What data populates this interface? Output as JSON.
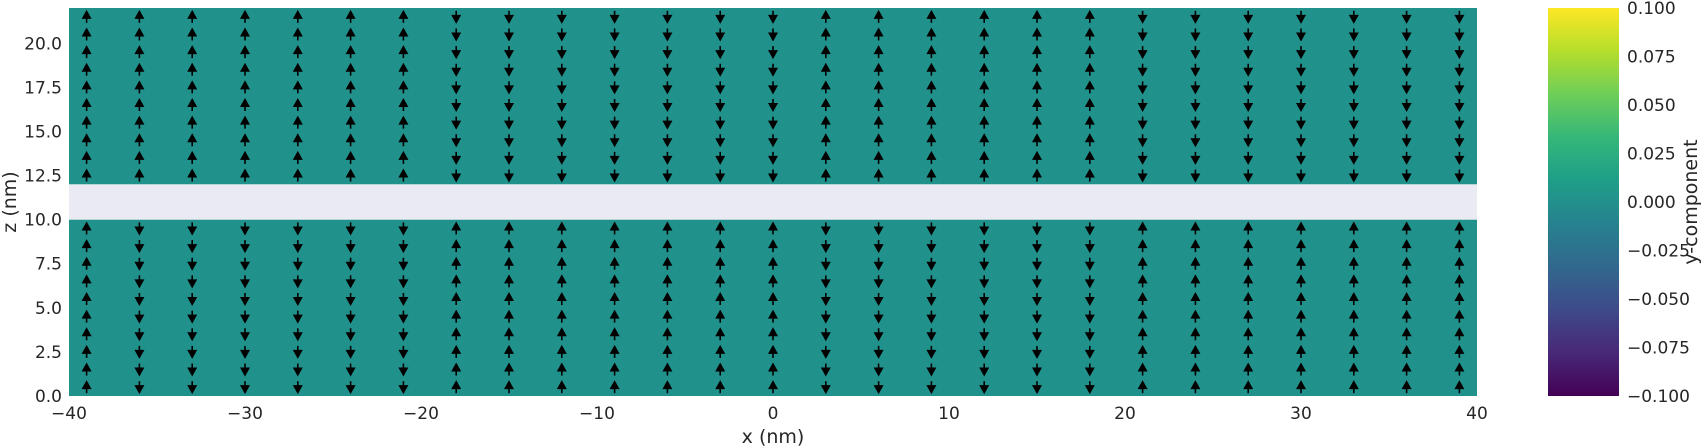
{
  "chart_data": {
    "type": "quiver-heatmap",
    "xlabel": "x (nm)",
    "ylabel": "z (nm)",
    "xlim": [
      -40,
      40
    ],
    "ylim": [
      0,
      22
    ],
    "x_ticks": [
      -40,
      -30,
      -20,
      -10,
      0,
      10,
      20,
      30,
      40
    ],
    "x_tick_labels": [
      "−40",
      "−30",
      "−20",
      "−10",
      "0",
      "10",
      "20",
      "30",
      "40"
    ],
    "y_ticks": [
      0,
      2.5,
      5,
      7.5,
      10,
      12.5,
      15,
      17.5,
      20
    ],
    "y_tick_labels": [
      "0.0",
      "2.5",
      "5.0",
      "7.5",
      "10.0",
      "12.5",
      "15.0",
      "17.5",
      "20.0"
    ],
    "field_value": 0.0,
    "field_color": "#21918c",
    "gap_color": "#eaeaf2",
    "layers": [
      {
        "z_range": [
          0,
          10
        ],
        "arrow_z": [
          0.5,
          1.5,
          2.5,
          3.5,
          4.5,
          5.5,
          6.5,
          7.5,
          8.5,
          9.5
        ],
        "top_arrow_z": 9.5
      },
      {
        "z_range": [
          12,
          22
        ],
        "arrow_z": [
          12.5,
          13.5,
          14.5,
          15.5,
          16.5,
          17.5,
          18.5,
          19.5,
          20.5,
          21.5
        ],
        "top_arrow_z": 21.5
      }
    ],
    "gap_z_range": [
      10,
      12
    ],
    "arrow_x": [
      -39,
      -36,
      -33,
      -30,
      -27,
      -24,
      -21,
      -18,
      -15,
      -12,
      -9,
      -6,
      -3,
      0,
      3,
      6,
      9,
      12,
      15,
      18,
      21,
      24,
      27,
      30,
      33,
      36,
      39
    ],
    "arrow_direction_bottom_layer": [
      "up",
      "down",
      "down",
      "down",
      "down",
      "down",
      "down",
      "up",
      "up",
      "up",
      "up",
      "up",
      "up",
      "up",
      "down",
      "down",
      "down",
      "down",
      "down",
      "down",
      "up",
      "up",
      "up",
      "up",
      "up",
      "up",
      "up"
    ],
    "arrow_direction_top_layer": [
      "up",
      "up",
      "up",
      "up",
      "up",
      "up",
      "up",
      "down",
      "down",
      "down",
      "down",
      "down",
      "down",
      "down",
      "up",
      "up",
      "up",
      "up",
      "up",
      "up",
      "down",
      "down",
      "down",
      "down",
      "down",
      "down",
      "down"
    ],
    "arrow_color": "#000000",
    "colorbar": {
      "label": "y-component",
      "range": [
        -0.1,
        0.1
      ],
      "ticks": [
        -0.1,
        -0.075,
        -0.05,
        -0.025,
        0.0,
        0.025,
        0.05,
        0.075,
        0.1
      ],
      "tick_labels": [
        "−0.100",
        "−0.075",
        "−0.050",
        "−0.025",
        "0.000",
        "0.025",
        "0.050",
        "0.075",
        "0.100"
      ],
      "colormap": "viridis",
      "stops": [
        "#440154",
        "#482878",
        "#3e4a89",
        "#31688e",
        "#26828e",
        "#1f9e89",
        "#35b779",
        "#6ece58",
        "#b5de2b",
        "#fde725"
      ]
    }
  }
}
